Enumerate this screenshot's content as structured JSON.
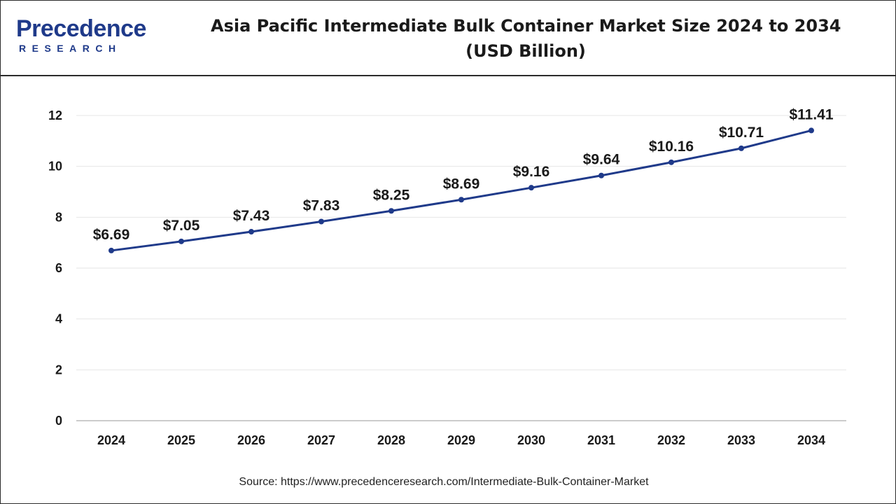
{
  "header": {
    "logo_main": "Precedence",
    "logo_sub": "RESEARCH",
    "title_line1": "Asia Pacific Intermediate Bulk Container Market Size 2024 to 2034",
    "title_line2": "(USD Billion)"
  },
  "source_text": "Source: https://www.precedenceresearch.com/Intermediate-Bulk-Container-Market",
  "colors": {
    "line": "#1f3a8a",
    "logo": "#1f3a8a",
    "grid": "#e6e6e6",
    "text": "#1a1a1a"
  },
  "chart_data": {
    "type": "line",
    "title": "Asia Pacific Intermediate Bulk Container Market Size 2024 to 2034 (USD Billion)",
    "xlabel": "",
    "ylabel": "",
    "categories": [
      "2024",
      "2025",
      "2026",
      "2027",
      "2028",
      "2029",
      "2030",
      "2031",
      "2032",
      "2033",
      "2034"
    ],
    "series": [
      {
        "values": [
          6.69,
          7.05,
          7.43,
          7.83,
          8.25,
          8.69,
          9.16,
          9.64,
          10.16,
          10.71,
          11.41
        ],
        "labels": [
          "$6.69",
          "$7.05",
          "$7.43",
          "$7.83",
          "$8.25",
          "$8.69",
          "$9.16",
          "$9.64",
          "$10.16",
          "$10.71",
          "$11.41"
        ]
      }
    ],
    "ylim": [
      0,
      12
    ],
    "yticks": [
      "0",
      "2",
      "4",
      "6",
      "8",
      "10",
      "12"
    ],
    "grid": true,
    "legend": "none"
  }
}
